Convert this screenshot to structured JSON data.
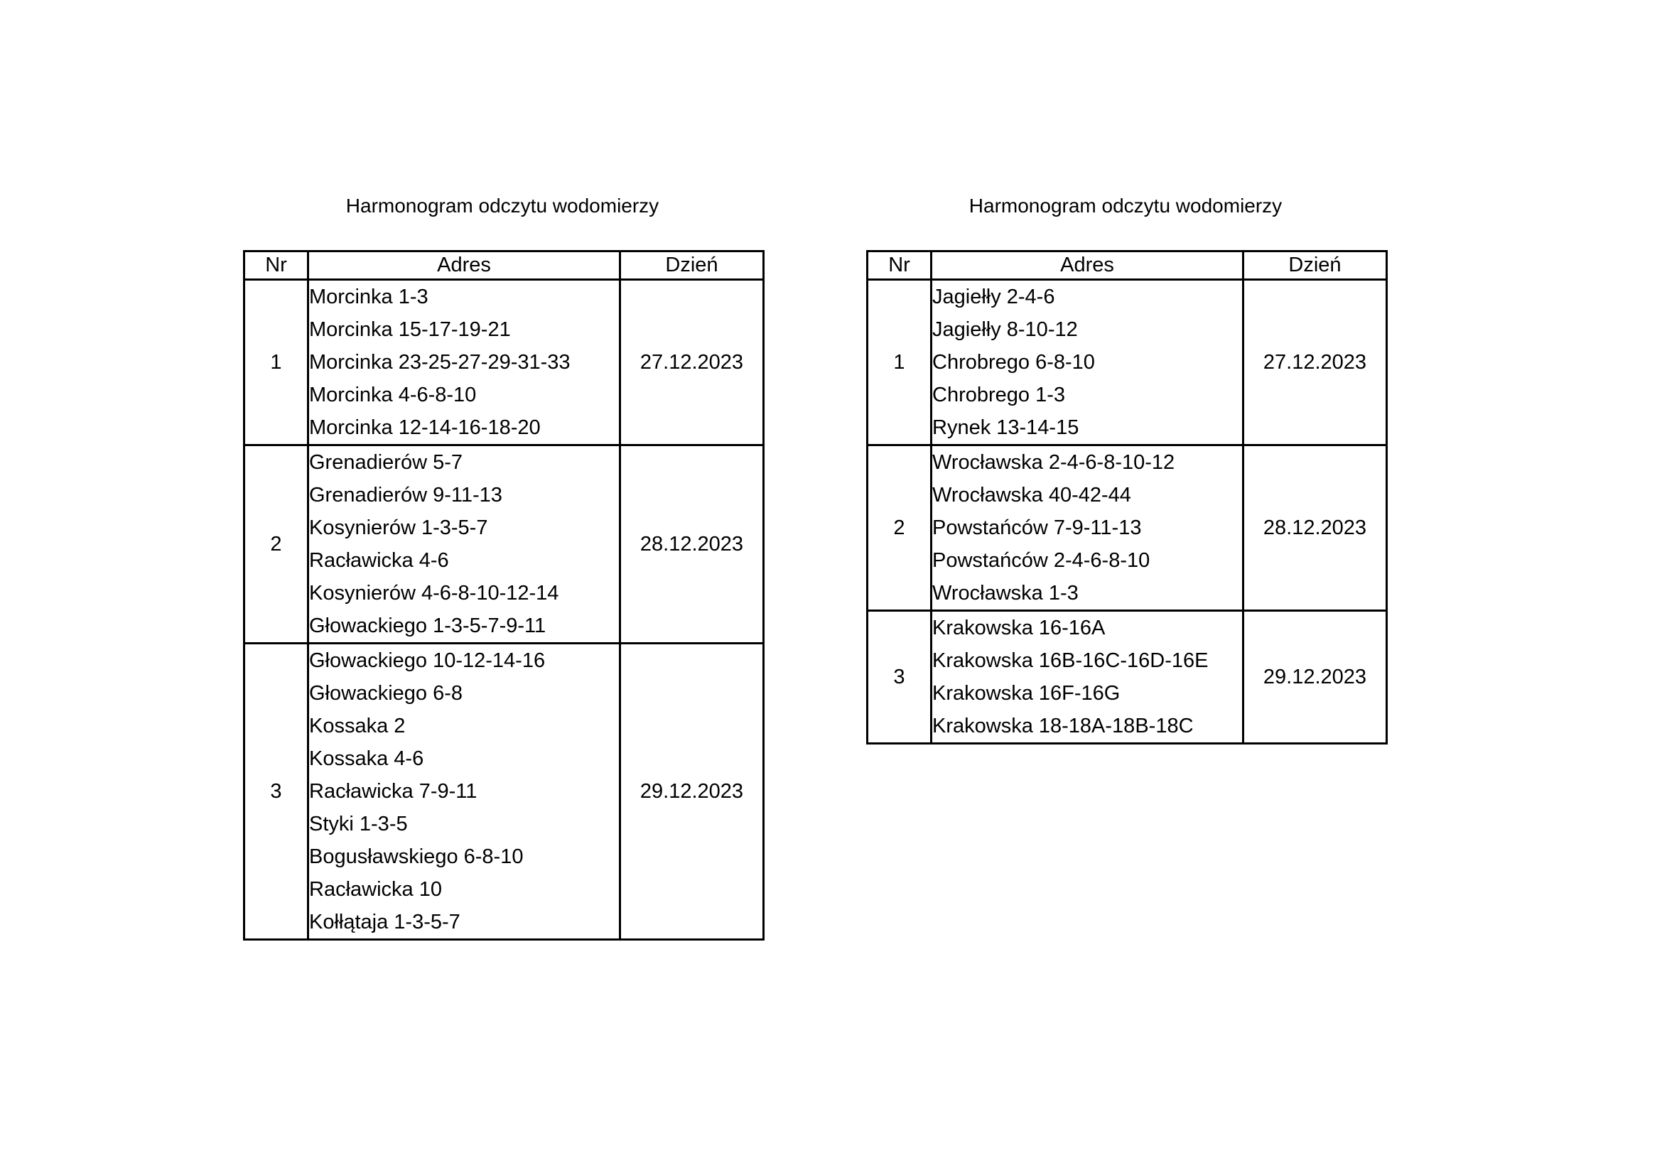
{
  "schedules": [
    {
      "title": "Harmonogram odczytu wodomierzy",
      "headers": {
        "nr": "Nr",
        "adres": "Adres",
        "dzien": "Dzień"
      },
      "groups": [
        {
          "nr": "1",
          "date": "27.12.2023",
          "addresses": [
            "Morcinka 1-3",
            "Morcinka 15-17-19-21",
            "Morcinka 23-25-27-29-31-33",
            "Morcinka 4-6-8-10",
            "Morcinka 12-14-16-18-20"
          ]
        },
        {
          "nr": "2",
          "date": "28.12.2023",
          "addresses": [
            "Grenadierów 5-7",
            "Grenadierów 9-11-13",
            "Kosynierów 1-3-5-7",
            "Racławicka 4-6",
            "Kosynierów 4-6-8-10-12-14",
            "Głowackiego 1-3-5-7-9-11"
          ]
        },
        {
          "nr": "3",
          "date": "29.12.2023",
          "addresses": [
            "Głowackiego 10-12-14-16",
            "Głowackiego 6-8",
            "Kossaka 2",
            "Kossaka 4-6",
            "Racławicka 7-9-11",
            "Styki 1-3-5",
            "Bogusławskiego 6-8-10",
            "Racławicka 10",
            "Kołłątaja 1-3-5-7"
          ]
        }
      ]
    },
    {
      "title": "Harmonogram odczytu wodomierzy",
      "headers": {
        "nr": "Nr",
        "adres": "Adres",
        "dzien": "Dzień"
      },
      "groups": [
        {
          "nr": "1",
          "date": "27.12.2023",
          "addresses": [
            "Jagiełły 2-4-6",
            "Jagiełły 8-10-12",
            "Chrobrego 6-8-10",
            "Chrobrego 1-3",
            "Rynek 13-14-15"
          ]
        },
        {
          "nr": "2",
          "date": "28.12.2023",
          "addresses": [
            "Wrocławska 2-4-6-8-10-12",
            "Wrocławska 40-42-44",
            "Powstańców 7-9-11-13",
            "Powstańców 2-4-6-8-10",
            "Wrocławska 1-3"
          ]
        },
        {
          "nr": "3",
          "date": "29.12.2023",
          "addresses": [
            "Krakowska 16-16A",
            "Krakowska 16B-16C-16D-16E",
            "Krakowska 16F-16G",
            "Krakowska 18-18A-18B-18C"
          ]
        }
      ]
    }
  ]
}
